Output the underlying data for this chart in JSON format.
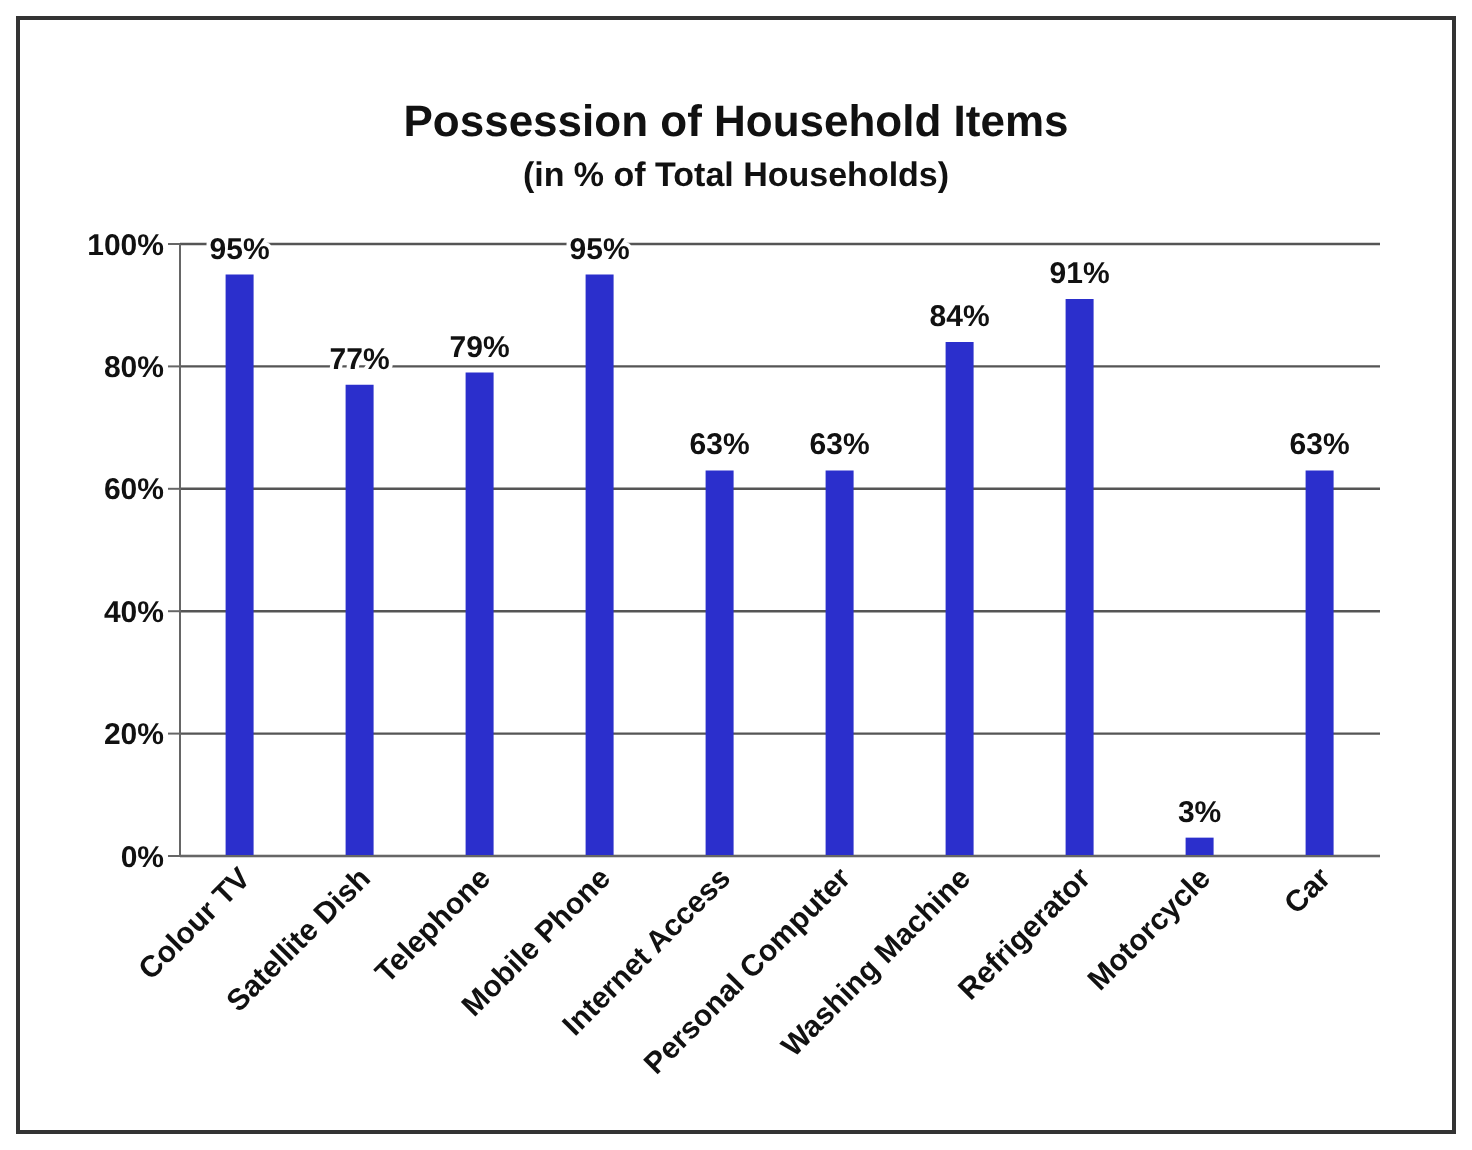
{
  "chart_data": {
    "type": "bar",
    "title": "Possession of Household Items",
    "subtitle": "(in % of Total Households)",
    "categories": [
      "Colour TV",
      "Satellite Dish",
      "Telephone",
      "Mobile Phone",
      "Internet Access",
      "Personal Computer",
      "Washing Machine",
      "Refrigerator",
      "Motorcycle",
      "Car"
    ],
    "values": [
      95,
      77,
      79,
      95,
      63,
      63,
      84,
      91,
      3,
      63
    ],
    "value_labels": [
      "95%",
      "77%",
      "79%",
      "95%",
      "63%",
      "63%",
      "84%",
      "91%",
      "3%",
      "63%"
    ],
    "color": "#2b2fcc",
    "ylim": [
      0,
      100
    ],
    "yticks": [
      {
        "value": 0,
        "label": "0%"
      },
      {
        "value": 20,
        "label": "20%"
      },
      {
        "value": 40,
        "label": "40%"
      },
      {
        "value": 60,
        "label": "60%"
      },
      {
        "value": 80,
        "label": "80%"
      },
      {
        "value": 100,
        "label": "100%"
      }
    ],
    "grid": "y"
  }
}
